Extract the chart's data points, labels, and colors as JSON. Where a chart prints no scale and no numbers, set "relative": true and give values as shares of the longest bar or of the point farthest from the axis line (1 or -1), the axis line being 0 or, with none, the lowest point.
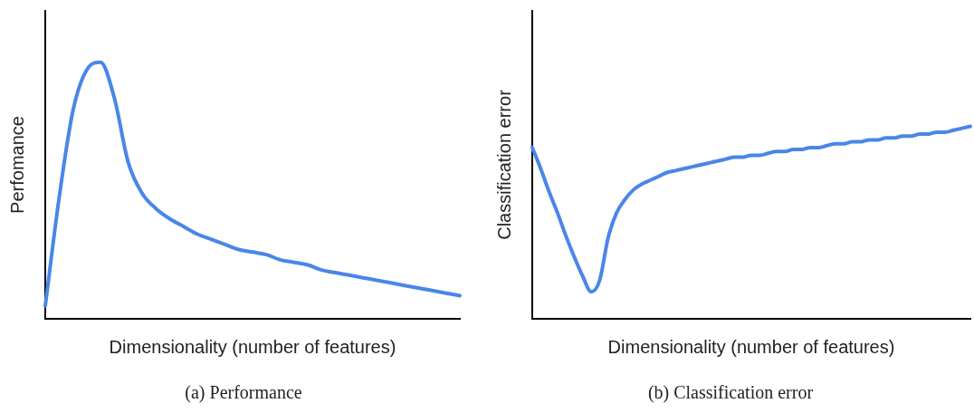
{
  "chart_data": [
    {
      "type": "line",
      "relative": true,
      "xlabel": "Dimensionality (number of features)",
      "ylabel": "Perfomance",
      "annotations": [
        "(a) Performance"
      ],
      "categories": [
        null,
        null,
        null,
        null,
        null,
        null,
        null,
        null,
        null,
        null,
        null,
        null,
        null,
        null,
        null,
        null,
        null,
        null,
        null,
        null,
        null,
        null,
        null,
        null,
        null,
        null,
        null,
        null,
        null,
        null,
        null
      ],
      "series": [
        {
          "color": "#4a86e8",
          "values": [
            0.05,
            0.47,
            0.81,
            0.97,
            1,
            0.86,
            0.61,
            0.49,
            0.43,
            0.39,
            0.36,
            0.33,
            0.31,
            0.29,
            0.27,
            0.26,
            0.25,
            0.23,
            0.22,
            0.21,
            0.19,
            0.18,
            0.17,
            0.16,
            0.15,
            0.14,
            0.13,
            0.12,
            0.11,
            0.1,
            0.09
          ]
        }
      ],
      "grid": false,
      "legend": false,
      "marker": "none",
      "line_style": "solid"
    },
    {
      "type": "line",
      "relative": true,
      "xlabel": "Dimensionality (number of features)",
      "ylabel": "Classification error",
      "annotations": [
        "(b) Classification error"
      ],
      "categories": [
        null,
        null,
        null,
        null,
        null,
        null,
        null,
        null,
        null,
        null,
        null,
        null,
        null,
        null,
        null,
        null,
        null,
        null,
        null,
        null,
        null,
        null,
        null,
        null,
        null,
        null,
        null,
        null,
        null,
        null,
        null,
        null,
        null,
        null,
        null,
        null,
        null,
        null,
        null,
        null,
        null,
        null,
        null,
        null,
        null,
        null,
        null,
        null,
        null,
        null,
        null,
        null,
        null
      ],
      "series": [
        {
          "color": "#4a86e8",
          "values": [
            0.89,
            0.78,
            0.66,
            0.55,
            0.43,
            0.32,
            0.22,
            0.14,
            0.2,
            0.42,
            0.55,
            0.62,
            0.67,
            0.7,
            0.72,
            0.74,
            0.76,
            0.77,
            0.78,
            0.79,
            0.8,
            0.81,
            0.82,
            0.83,
            0.84,
            0.84,
            0.85,
            0.85,
            0.86,
            0.87,
            0.87,
            0.88,
            0.88,
            0.89,
            0.89,
            0.9,
            0.91,
            0.91,
            0.92,
            0.92,
            0.93,
            0.93,
            0.94,
            0.94,
            0.95,
            0.95,
            0.96,
            0.96,
            0.97,
            0.97,
            0.98,
            0.99,
            1
          ]
        }
      ],
      "grid": false,
      "legend": false,
      "marker": "none",
      "line_style": "solid"
    }
  ]
}
